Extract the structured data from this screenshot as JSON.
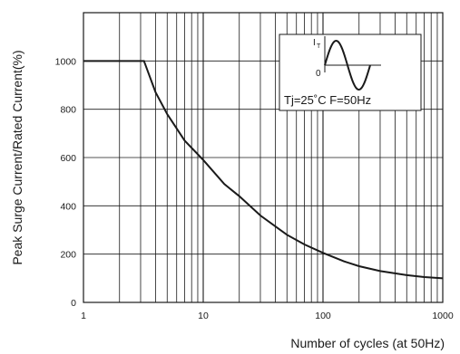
{
  "chart_data": {
    "type": "line",
    "title": "",
    "xlabel": "Number of cycles (at 50Hz)",
    "ylabel": "Peak Surge Current/Rated Current(%)",
    "xscale": "log",
    "xlim": [
      1,
      1000
    ],
    "ylim": [
      0,
      1200
    ],
    "grid": true,
    "x_ticks": [
      1,
      10,
      100,
      1000
    ],
    "x_tick_labels": [
      "1",
      "10",
      "100",
      "1000"
    ],
    "y_ticks": [
      0,
      200,
      400,
      600,
      800,
      1000
    ],
    "y_tick_labels": [
      "0",
      "200",
      "400",
      "600",
      "800",
      "1000"
    ],
    "series": [
      {
        "name": "",
        "color": "#1a1a1a",
        "x": [
          1,
          2,
          3.2,
          4,
          5,
          7,
          10,
          15,
          20,
          30,
          50,
          70,
          100,
          150,
          200,
          300,
          500,
          700,
          1000
        ],
        "y": [
          1000,
          1000,
          1000,
          870,
          780,
          670,
          590,
          490,
          440,
          360,
          280,
          240,
          205,
          170,
          150,
          130,
          113,
          105,
          100
        ]
      }
    ],
    "inset": {
      "conditions": "Tj=25˚C   F=50Hz",
      "current_symbol": "I",
      "current_subscript": "T",
      "zero_label": "0"
    }
  }
}
